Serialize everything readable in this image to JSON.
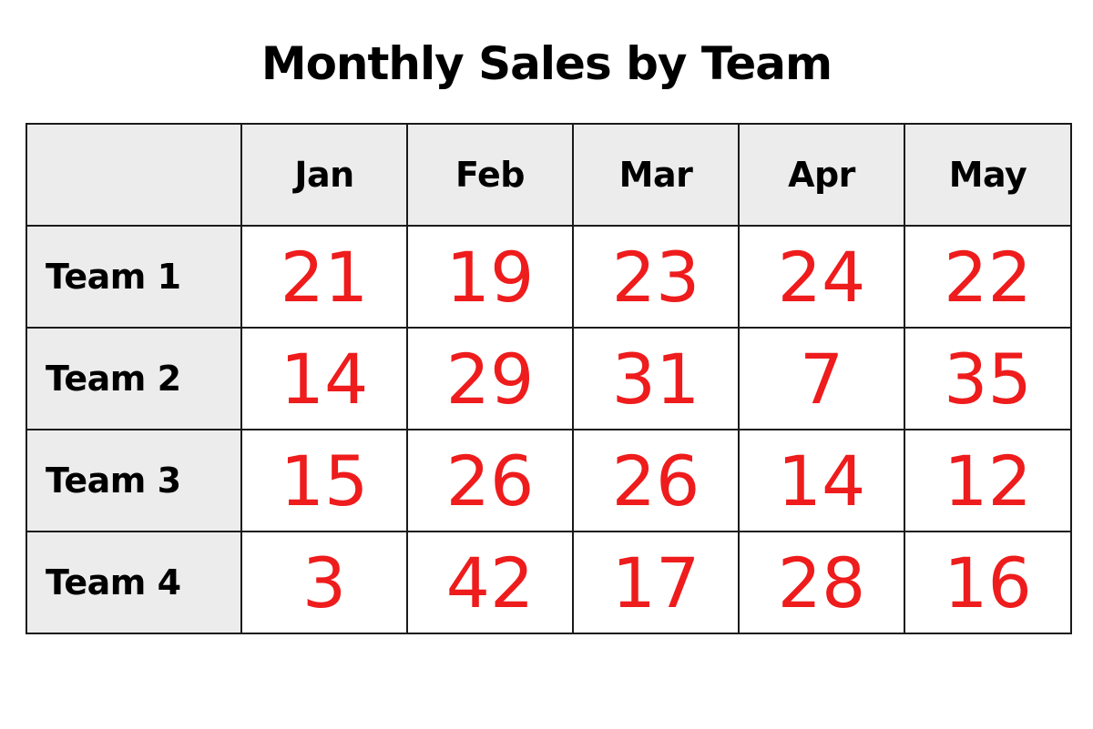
{
  "chart_data": {
    "type": "table",
    "title": "Monthly Sales by Team",
    "columns": [
      "Jan",
      "Feb",
      "Mar",
      "Apr",
      "May"
    ],
    "rows": [
      {
        "label": "Team 1",
        "values": [
          21,
          19,
          23,
          24,
          22
        ]
      },
      {
        "label": "Team 2",
        "values": [
          14,
          29,
          31,
          7,
          35
        ]
      },
      {
        "label": "Team 3",
        "values": [
          15,
          26,
          26,
          14,
          12
        ]
      },
      {
        "label": "Team 4",
        "values": [
          3,
          42,
          17,
          28,
          16
        ]
      }
    ],
    "colors": {
      "value_text": "#ee1c1c",
      "header_background": "#ececec",
      "border": "#1a1a1a"
    }
  }
}
